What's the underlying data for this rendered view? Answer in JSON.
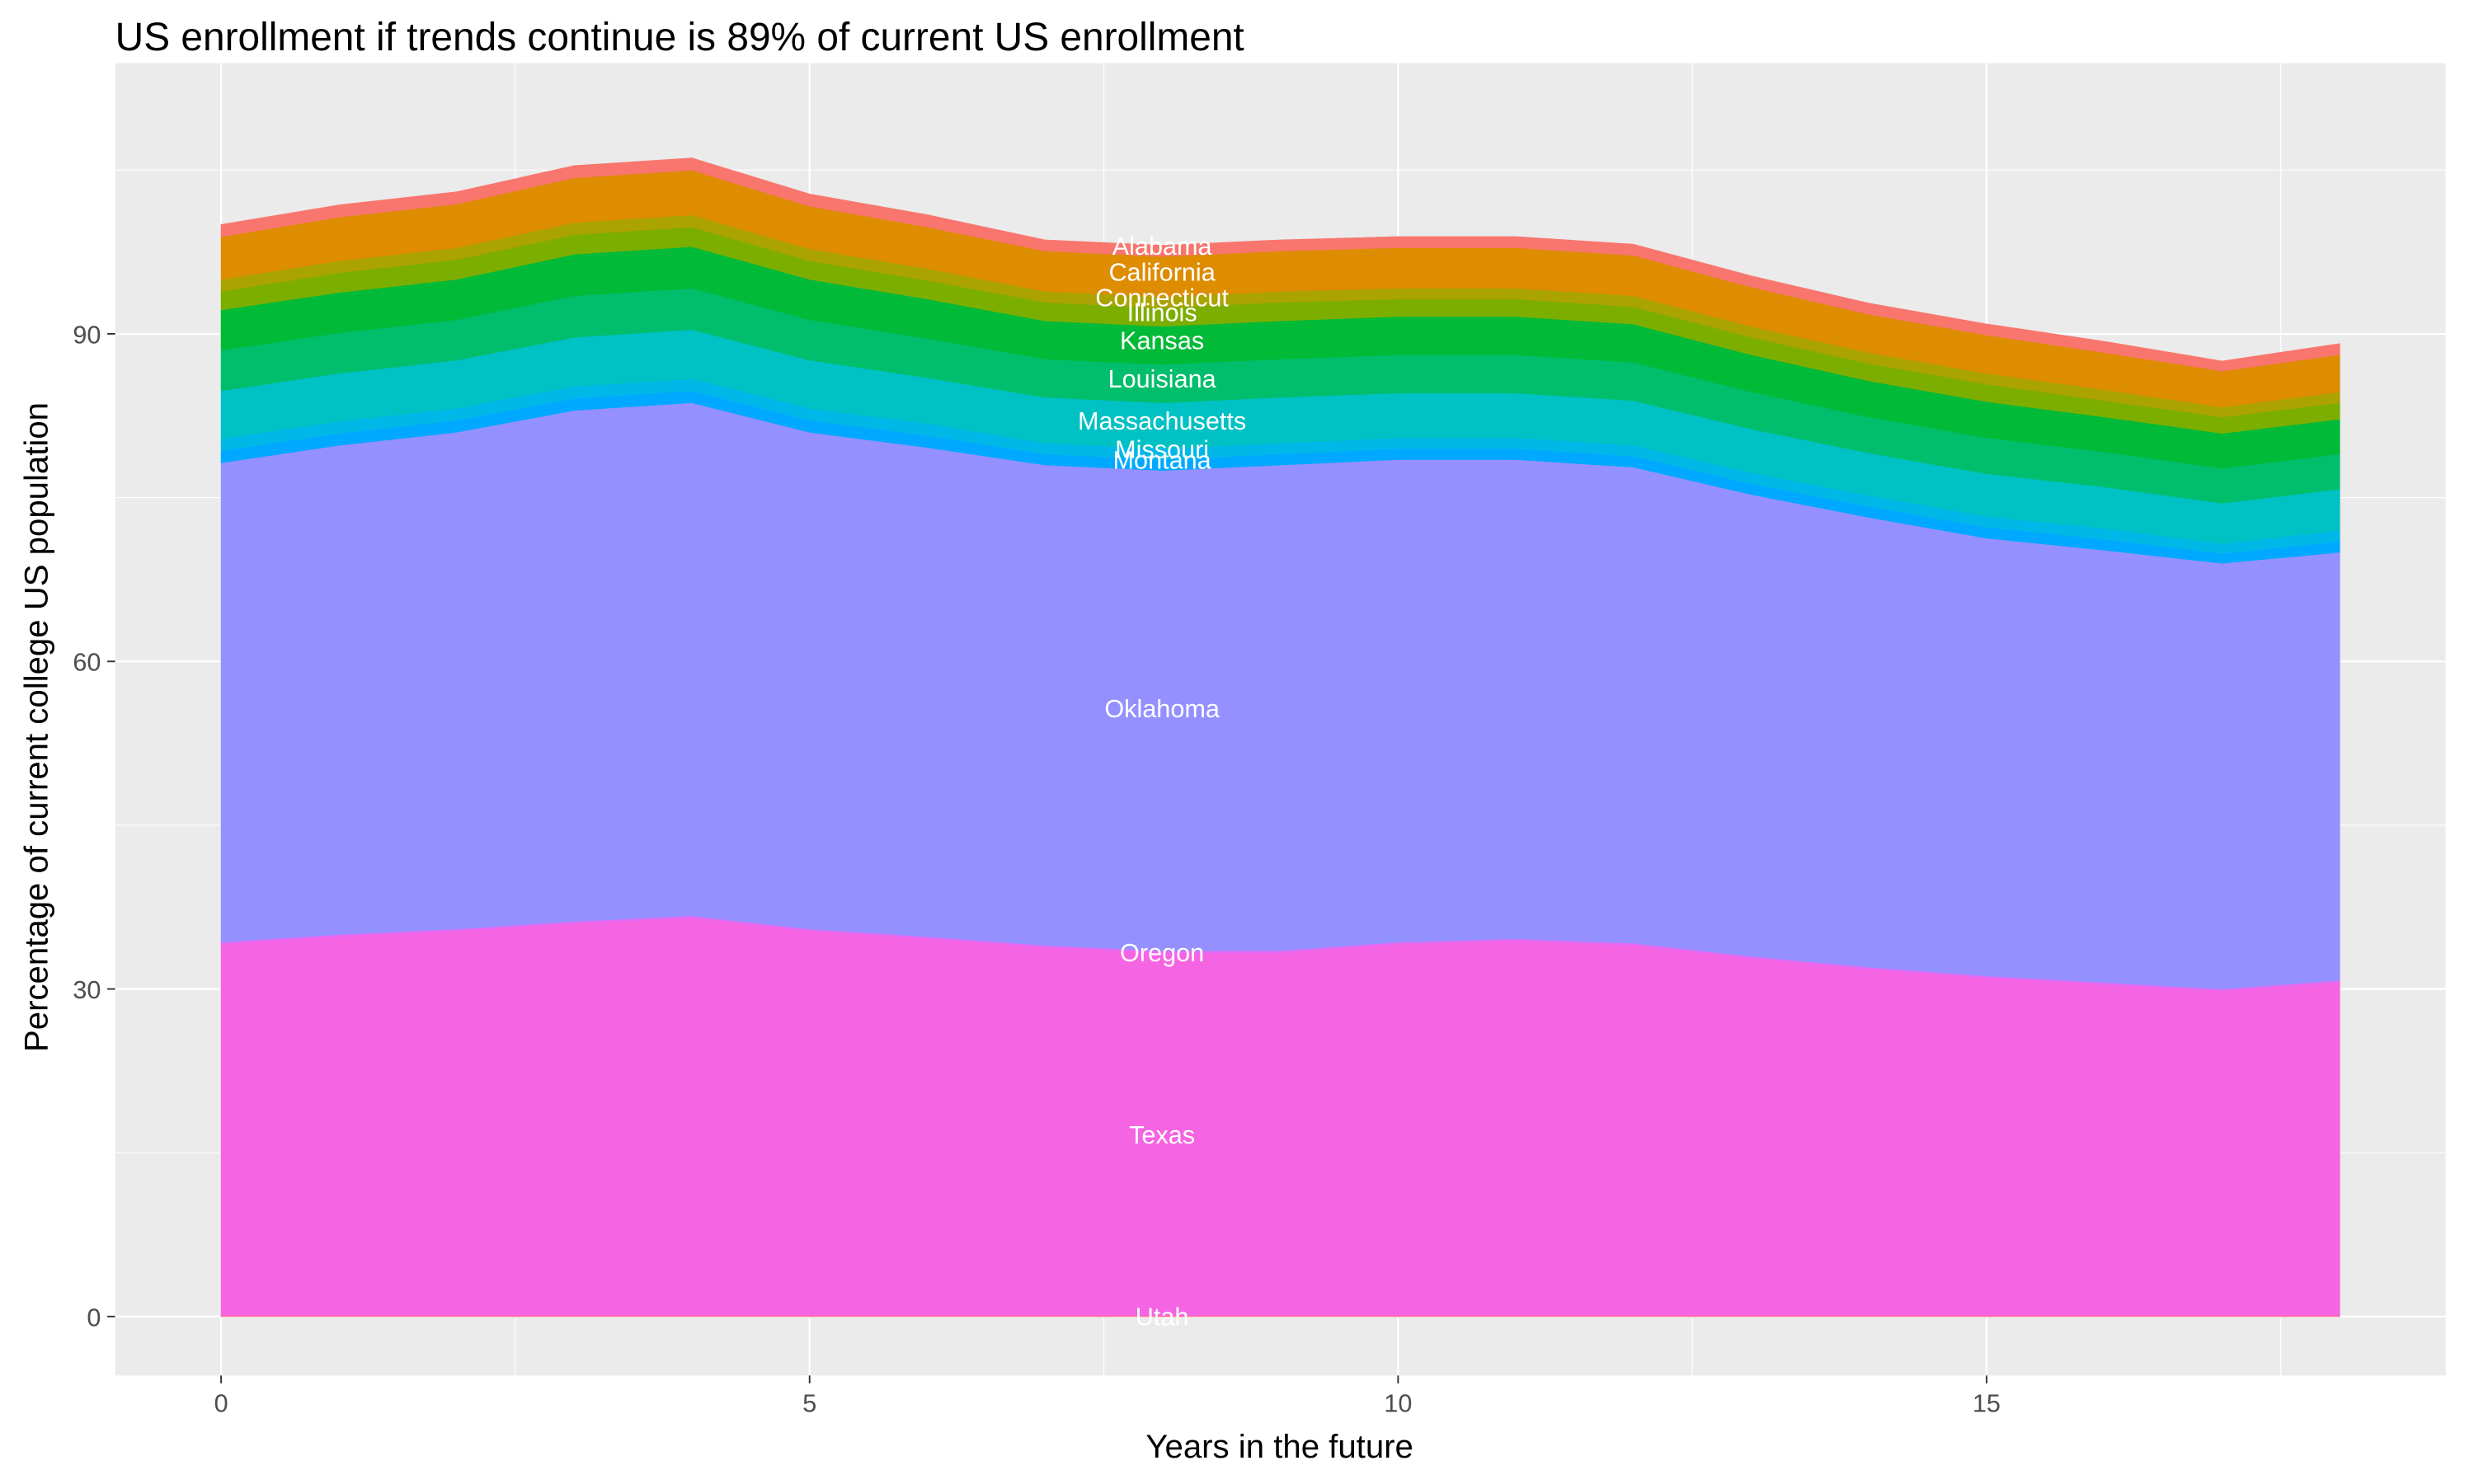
{
  "chart_data": {
    "type": "stacked_area",
    "title": "US enrollment if trends continue is 89% of current US enrollment",
    "x_label": "Years in the future",
    "y_label": "Percentage of current college US population",
    "x": [
      0,
      1,
      2,
      3,
      4,
      5,
      6,
      7,
      8,
      9,
      10,
      11,
      12,
      13,
      14,
      15,
      16,
      17,
      18
    ],
    "xlim": [
      -0.9,
      18.9
    ],
    "xticks": [
      0,
      5,
      10,
      15
    ],
    "ylim": [
      -5.4,
      114.8
    ],
    "yticks": [
      0,
      30,
      60,
      90
    ],
    "grid": true,
    "series": [
      {
        "name": "Utah",
        "color": "#FF6C91",
        "values": [
          0.1,
          0.1,
          0.1,
          0.1,
          0.1,
          0.1,
          0.1,
          0.1,
          0.1,
          0.1,
          0.1,
          0.1,
          0.1,
          0.1,
          0.1,
          0.1,
          0.1,
          0.1,
          0.1
        ]
      },
      {
        "name": "Texas",
        "color": "#F564E3",
        "values": [
          34.0,
          34.7,
          35.2,
          35.9,
          36.4,
          35.2,
          34.5,
          33.7,
          33.2,
          33.2,
          34.0,
          34.3,
          33.9,
          32.7,
          31.7,
          30.9,
          30.3,
          29.7,
          30.5
        ]
      },
      {
        "name": "Oregon",
        "color": "#E76BF3",
        "values": [
          0.2,
          0.2,
          0.2,
          0.2,
          0.2,
          0.2,
          0.2,
          0.2,
          0.2,
          0.2,
          0.2,
          0.2,
          0.2,
          0.2,
          0.2,
          0.2,
          0.2,
          0.2,
          0.2
        ]
      },
      {
        "name": "Oklahoma",
        "color": "#9590FF",
        "values": [
          43.9,
          44.8,
          45.5,
          46.8,
          47.0,
          45.5,
          44.8,
          44.0,
          44.0,
          44.5,
          44.2,
          43.9,
          43.6,
          42.3,
          41.2,
          40.1,
          39.6,
          39.0,
          39.2
        ]
      },
      {
        "name": "Montana",
        "color": "#00A9FF",
        "values": [
          1.1,
          1.1,
          1.1,
          1.1,
          1.1,
          1.1,
          1.1,
          1.0,
          1.0,
          1.0,
          1.0,
          1.0,
          1.0,
          1.0,
          1.0,
          1.0,
          1.0,
          0.9,
          1.0
        ]
      },
      {
        "name": "Missouri",
        "color": "#00B8E7",
        "values": [
          1.1,
          1.1,
          1.1,
          1.1,
          1.1,
          1.1,
          1.1,
          1.0,
          1.0,
          1.0,
          1.0,
          1.0,
          1.0,
          1.0,
          1.0,
          1.0,
          1.0,
          0.9,
          1.0
        ]
      },
      {
        "name": "Massachusetts",
        "color": "#00C1C4",
        "values": [
          4.4,
          4.4,
          4.4,
          4.5,
          4.5,
          4.4,
          4.2,
          4.2,
          4.2,
          4.2,
          4.1,
          4.1,
          4.1,
          4.0,
          3.9,
          3.9,
          3.8,
          3.7,
          3.8
        ]
      },
      {
        "name": "Louisiana",
        "color": "#00BE6C",
        "values": [
          3.7,
          3.7,
          3.7,
          3.8,
          3.8,
          3.7,
          3.6,
          3.5,
          3.5,
          3.5,
          3.5,
          3.5,
          3.5,
          3.4,
          3.3,
          3.3,
          3.2,
          3.2,
          3.2
        ]
      },
      {
        "name": "Kansas",
        "color": "#00BA38",
        "values": [
          3.7,
          3.7,
          3.7,
          3.8,
          3.8,
          3.7,
          3.6,
          3.5,
          3.5,
          3.5,
          3.5,
          3.5,
          3.5,
          3.4,
          3.3,
          3.3,
          3.2,
          3.2,
          3.2
        ]
      },
      {
        "name": "Illinois",
        "color": "#7CAE00",
        "values": [
          1.7,
          1.8,
          1.8,
          1.8,
          1.8,
          1.7,
          1.7,
          1.7,
          1.7,
          1.7,
          1.6,
          1.6,
          1.6,
          1.6,
          1.6,
          1.6,
          1.5,
          1.5,
          1.5
        ]
      },
      {
        "name": "Connecticut",
        "color": "#ABA300",
        "values": [
          1.1,
          1.1,
          1.1,
          1.1,
          1.1,
          1.1,
          1.1,
          1.0,
          1.0,
          1.0,
          1.0,
          1.0,
          1.0,
          1.0,
          1.0,
          1.0,
          1.0,
          0.9,
          1.0
        ]
      },
      {
        "name": "California",
        "color": "#DE8C00",
        "values": [
          3.9,
          4.0,
          4.0,
          4.1,
          4.1,
          3.9,
          3.8,
          3.7,
          3.7,
          3.7,
          3.7,
          3.7,
          3.7,
          3.6,
          3.5,
          3.5,
          3.4,
          3.3,
          3.4
        ]
      },
      {
        "name": "Alabama",
        "color": "#F8766D",
        "values": [
          1.1,
          1.1,
          1.1,
          1.1,
          1.1,
          1.1,
          1.1,
          1.0,
          1.0,
          1.0,
          1.0,
          1.0,
          1.0,
          1.0,
          1.0,
          1.0,
          1.0,
          0.9,
          1.0
        ]
      }
    ]
  }
}
